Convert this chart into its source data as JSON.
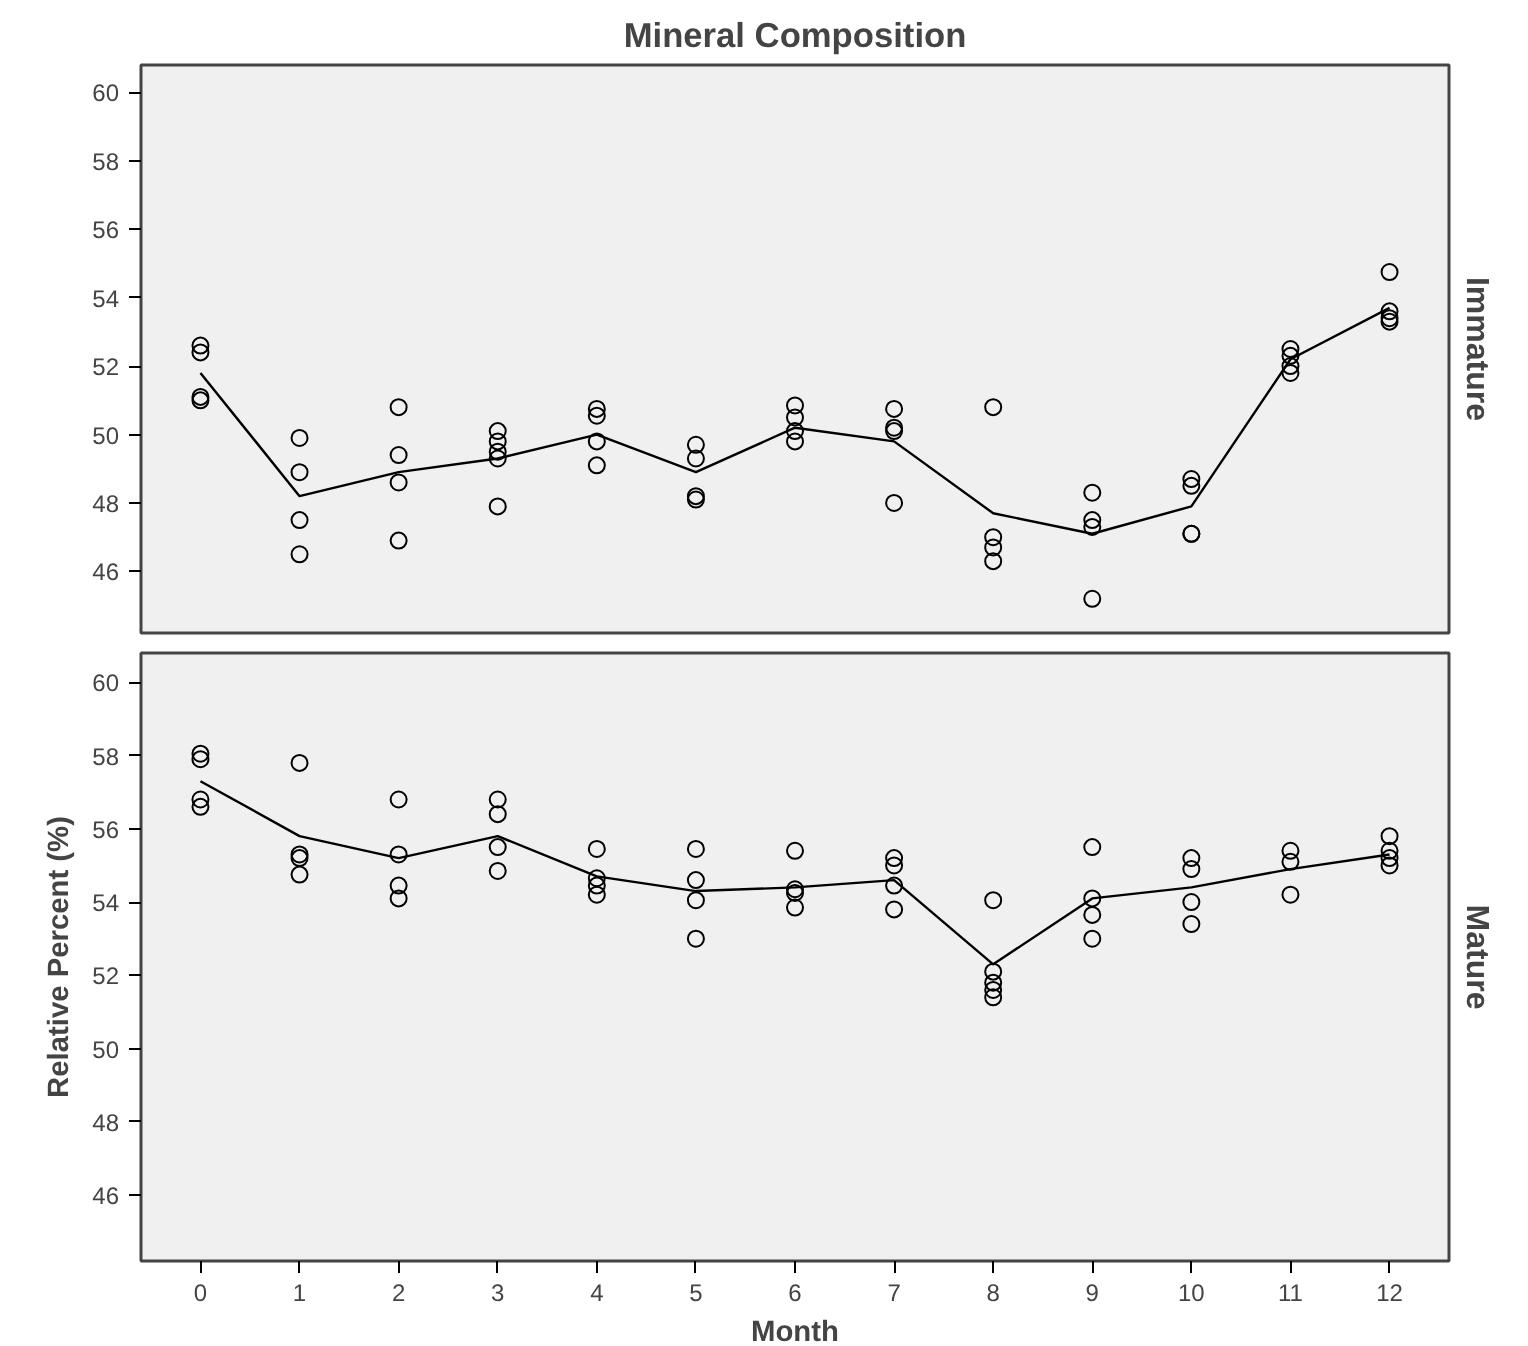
{
  "chart_data": [
    {
      "type": "scatter",
      "title": "Mineral Composition",
      "annotations": [
        "Immature"
      ],
      "xlim": [
        -0.6,
        12.6
      ],
      "xticks": [
        0,
        1,
        2,
        3,
        4,
        5,
        6,
        7,
        8,
        9,
        10,
        11,
        12
      ],
      "ylim": [
        44.2,
        60.8
      ],
      "yticks": [
        46,
        48,
        50,
        52,
        54,
        56,
        58,
        60
      ],
      "tick_labels": "y",
      "grid": false,
      "series": [
        {
          "marker": "circle",
          "color": "#000000",
          "x": [
            0,
            0,
            0,
            0,
            1,
            1,
            1,
            1,
            2,
            2,
            2,
            2,
            3,
            3,
            3,
            3,
            3,
            4,
            4,
            4,
            4,
            5,
            5,
            5,
            5,
            6,
            6,
            6,
            6,
            7,
            7,
            7,
            7,
            8,
            8,
            8,
            8,
            9,
            9,
            9,
            9,
            10,
            10,
            10,
            10,
            11,
            11,
            11,
            11,
            12,
            12,
            12,
            12
          ],
          "values": [
            52.6,
            52.4,
            51.1,
            51.0,
            49.9,
            48.9,
            47.5,
            46.5,
            50.8,
            49.4,
            48.6,
            46.9,
            50.1,
            49.8,
            49.5,
            49.3,
            47.9,
            50.75,
            50.55,
            49.8,
            49.1,
            49.7,
            49.3,
            48.2,
            48.1,
            50.85,
            50.5,
            50.1,
            49.8,
            50.75,
            50.2,
            50.1,
            48.0,
            50.8,
            47.0,
            46.7,
            46.3,
            48.3,
            47.5,
            47.3,
            45.2,
            48.7,
            48.5,
            47.1,
            47.1,
            52.5,
            52.3,
            52.0,
            51.8,
            54.75,
            53.6,
            53.4,
            53.3
          ]
        },
        {
          "type": "line",
          "line_style": "solid",
          "color": "#000000",
          "x": [
            0,
            1,
            2,
            3,
            4,
            5,
            6,
            7,
            8,
            9,
            10,
            11,
            12
          ],
          "values": [
            51.8,
            48.2,
            48.9,
            49.3,
            50.0,
            48.9,
            50.2,
            49.8,
            47.7,
            47.1,
            47.9,
            52.2,
            53.7
          ]
        }
      ]
    },
    {
      "type": "scatter",
      "xlabel": "Month",
      "ylabel": "Relative Percent (%)",
      "annotations": [
        "Mature"
      ],
      "xlim": [
        -0.6,
        12.6
      ],
      "xticks": [
        0,
        1,
        2,
        3,
        4,
        5,
        6,
        7,
        8,
        9,
        10,
        11,
        12
      ],
      "ylim": [
        44.2,
        60.8
      ],
      "yticks": [
        46,
        48,
        50,
        52,
        54,
        56,
        58,
        60
      ],
      "grid": false,
      "series": [
        {
          "marker": "circle",
          "color": "#000000",
          "x": [
            0,
            0,
            0,
            0,
            1,
            1,
            1,
            1,
            2,
            2,
            2,
            2,
            3,
            3,
            3,
            3,
            4,
            4,
            4,
            4,
            5,
            5,
            5,
            5,
            6,
            6,
            6,
            6,
            7,
            7,
            7,
            7,
            8,
            8,
            8,
            8,
            8,
            9,
            9,
            9,
            9,
            10,
            10,
            10,
            10,
            11,
            11,
            11,
            12,
            12,
            12,
            12
          ],
          "values": [
            58.05,
            57.9,
            56.8,
            56.6,
            57.8,
            55.3,
            55.2,
            54.75,
            56.8,
            55.3,
            54.45,
            54.1,
            56.8,
            56.4,
            55.5,
            54.85,
            55.45,
            54.65,
            54.45,
            54.2,
            55.45,
            54.6,
            54.05,
            53.0,
            55.4,
            54.35,
            54.25,
            53.85,
            55.2,
            55.0,
            54.45,
            53.8,
            54.05,
            52.1,
            51.8,
            51.6,
            51.4,
            55.5,
            54.1,
            53.65,
            53.0,
            55.2,
            54.9,
            54.0,
            53.4,
            55.4,
            55.1,
            54.2,
            55.8,
            55.4,
            55.2,
            55.0
          ]
        },
        {
          "type": "line",
          "line_style": "solid",
          "color": "#000000",
          "x": [
            0,
            1,
            2,
            3,
            4,
            5,
            6,
            7,
            8,
            9,
            10,
            11,
            12
          ],
          "values": [
            57.3,
            55.8,
            55.2,
            55.8,
            54.7,
            54.3,
            54.4,
            54.6,
            52.3,
            54.1,
            54.4,
            54.9,
            55.3
          ]
        }
      ]
    }
  ]
}
